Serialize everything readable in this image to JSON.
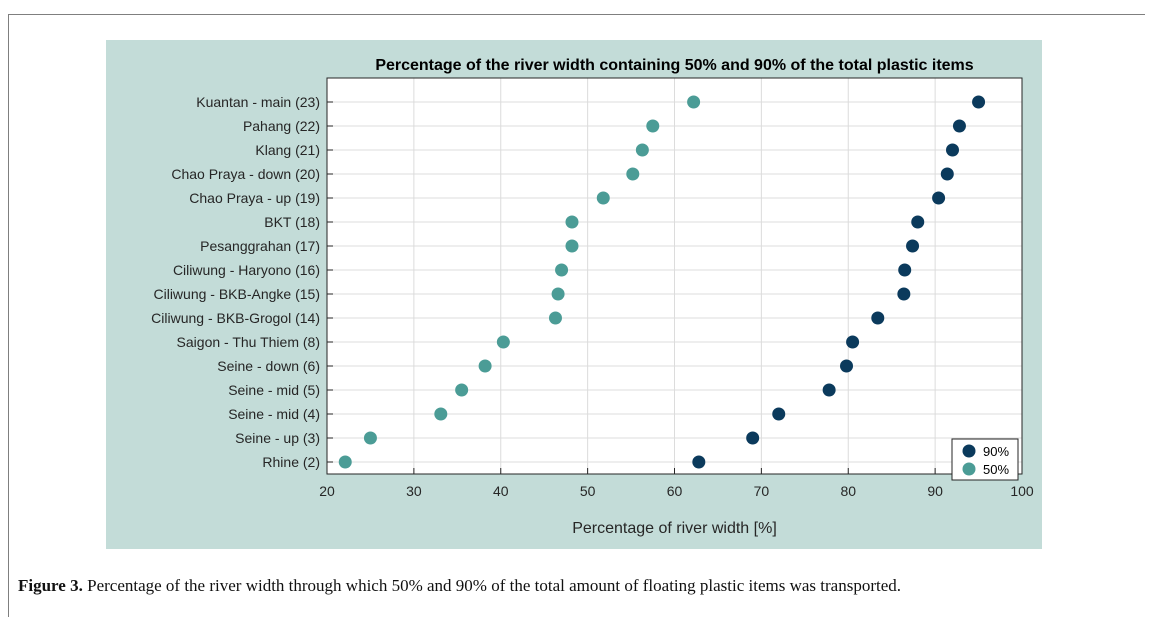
{
  "caption": {
    "label": "Figure 3.",
    "text": "Percentage of the river width through which 50% and 90% of the total amount of floating plastic items was transported."
  },
  "colors": {
    "panel_background": "#c3dcd8",
    "plot_background": "#ffffff",
    "series_90": "#0b3a5c",
    "series_50": "#4b9c96"
  },
  "chart_data": {
    "type": "scatter",
    "title": "Percentage of the river width containing 50% and 90% of the total plastic items",
    "xlabel": "Percentage of river width [%]",
    "ylabel": "",
    "xlim": [
      20,
      100
    ],
    "xticks": [
      20,
      30,
      40,
      50,
      60,
      70,
      80,
      90,
      100
    ],
    "grid": true,
    "legend_position": "bottom-right",
    "categories": [
      "Kuantan - main (23)",
      "Pahang (22)",
      "Klang (21)",
      "Chao Praya - down (20)",
      "Chao Praya - up (19)",
      "BKT (18)",
      "Pesanggrahan (17)",
      "Ciliwung - Haryono (16)",
      "Ciliwung - BKB-Angke (15)",
      "Ciliwung - BKB-Grogol (14)",
      "Saigon - Thu Thiem (8)",
      "Seine - down (6)",
      "Seine - mid (5)",
      "Seine - mid (4)",
      "Seine - up (3)",
      "Rhine (2)"
    ],
    "series": [
      {
        "name": "90%",
        "values": [
          95.0,
          92.8,
          92.0,
          91.4,
          90.4,
          88.0,
          87.4,
          86.5,
          86.4,
          83.4,
          80.5,
          79.8,
          77.8,
          72.0,
          69.0,
          62.8
        ]
      },
      {
        "name": "50%",
        "values": [
          62.2,
          57.5,
          56.3,
          55.2,
          51.8,
          48.2,
          48.2,
          47.0,
          46.6,
          46.3,
          40.3,
          38.2,
          35.5,
          33.1,
          25.0,
          22.1
        ]
      }
    ]
  }
}
